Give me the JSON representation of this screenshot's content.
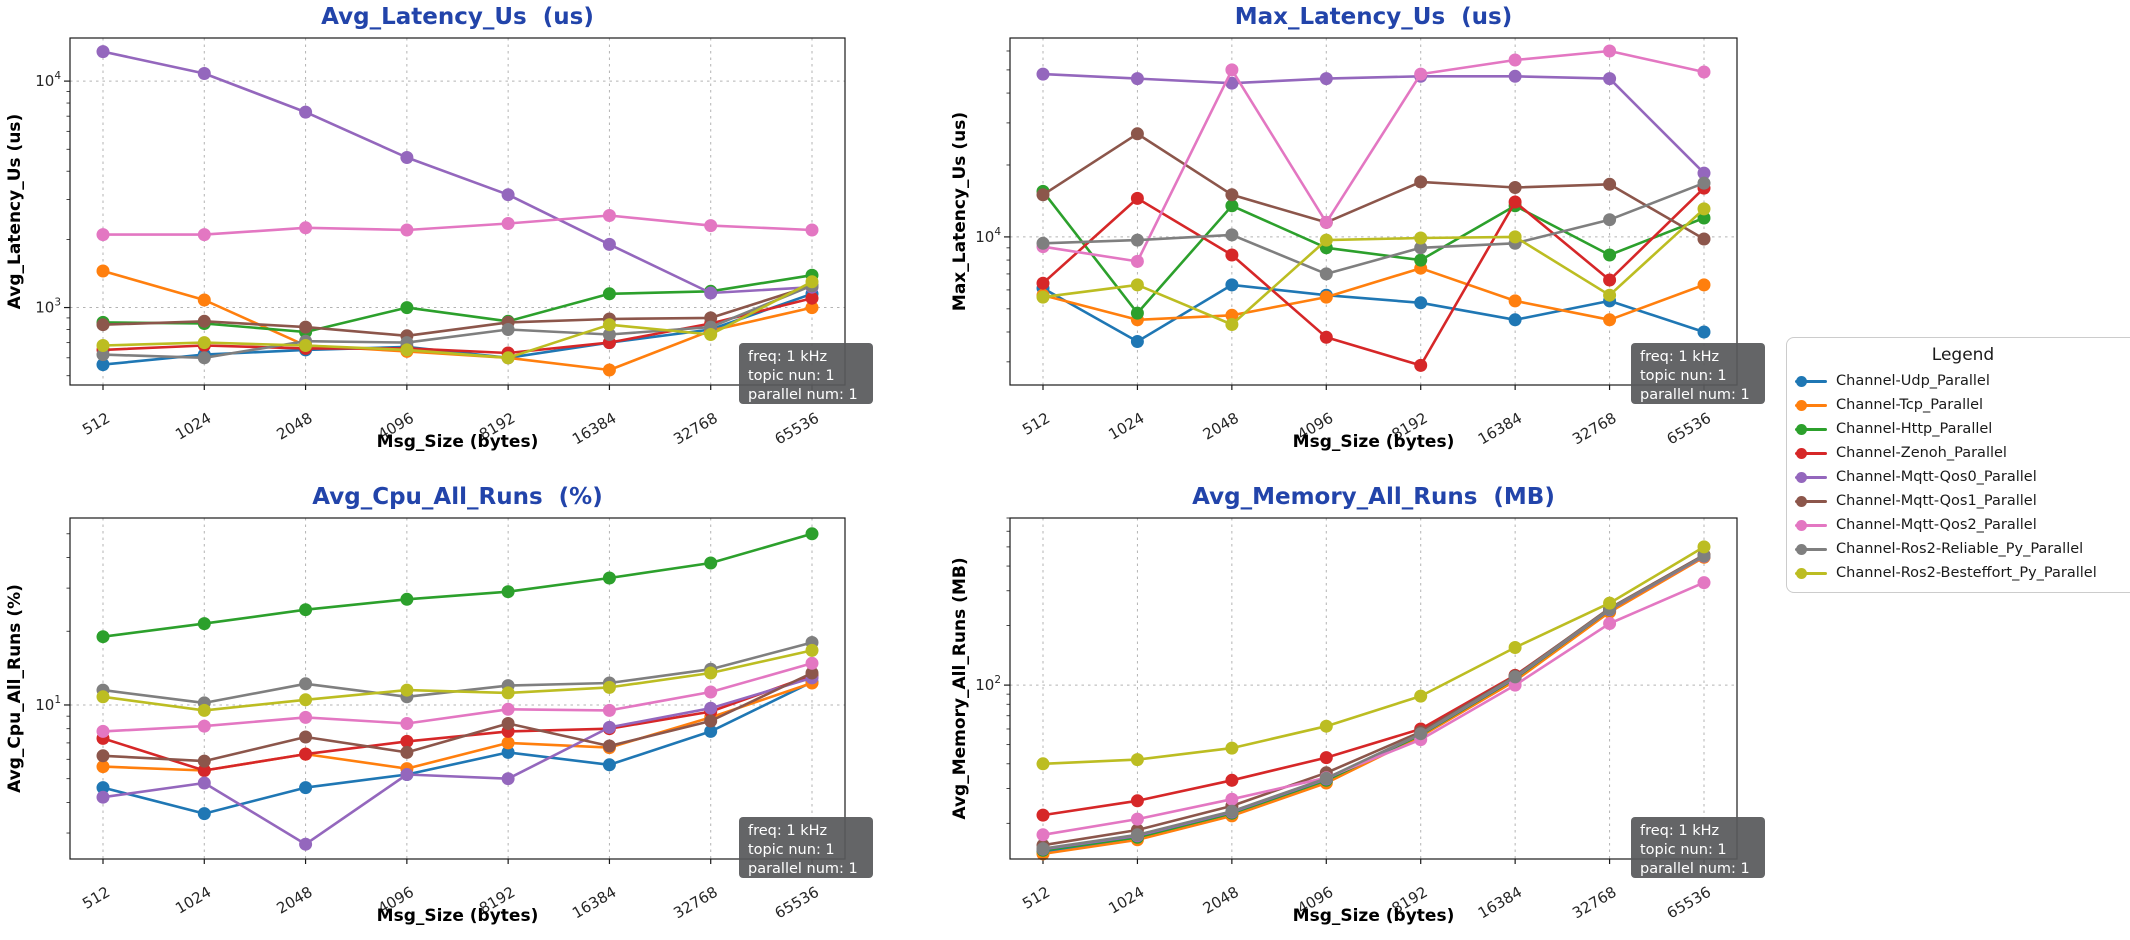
{
  "figure": {
    "background": "#ffffff",
    "title_color": "#2244aa",
    "grid_color": "#b3b3b3",
    "tick_label_color": "#262626",
    "spine_color": "#1a1a1a",
    "annotation_bg": "#58595b",
    "annotation_text_color": "#ffffff"
  },
  "legend": {
    "title": "Legend",
    "items": [
      {
        "label": "Channel-Udp_Parallel",
        "color": "#1f77b4"
      },
      {
        "label": "Channel-Tcp_Parallel",
        "color": "#ff7f0e"
      },
      {
        "label": "Channel-Http_Parallel",
        "color": "#2ca02c"
      },
      {
        "label": "Channel-Zenoh_Parallel",
        "color": "#d62728"
      },
      {
        "label": "Channel-Mqtt-Qos0_Parallel",
        "color": "#9467bd"
      },
      {
        "label": "Channel-Mqtt-Qos1_Parallel",
        "color": "#8c564b"
      },
      {
        "label": "Channel-Mqtt-Qos2_Parallel",
        "color": "#e377c2"
      },
      {
        "label": "Channel-Ros2-Reliable_Py_Parallel",
        "color": "#7f7f7f"
      },
      {
        "label": "Channel-Ros2-Besteffort_Py_Parallel",
        "color": "#bcbd22"
      }
    ]
  },
  "annotation": {
    "lines": [
      "freq: 1 kHz",
      "topic nun: 1",
      "parallel num: 1"
    ]
  },
  "x_axis": {
    "label": "Msg_Size (bytes)",
    "ticks": [
      "512",
      "1024",
      "2048",
      "4096",
      "8192",
      "16384",
      "32768",
      "65536"
    ]
  },
  "chart_data": [
    {
      "id": "avg-latency",
      "type": "line",
      "title": "Avg_Latency_Us  (us)",
      "ylabel": "Avg_Latency_Us (us)",
      "xlabel": "Msg_Size (bytes)",
      "x": [
        512,
        1024,
        2048,
        4096,
        8192,
        16384,
        32768,
        65536
      ],
      "log_y": true,
      "ylim": [
        455,
        15500
      ],
      "major_yticks": [
        1000,
        10000
      ],
      "grid": "dashed",
      "legend_position": "none",
      "series": [
        {
          "name": "Channel-Udp_Parallel",
          "color": "#1f77b4",
          "values": [
            560,
            620,
            650,
            670,
            600,
            700,
            800,
            1150
          ]
        },
        {
          "name": "Channel-Tcp_Parallel",
          "color": "#ff7f0e",
          "values": [
            1450,
            1080,
            680,
            640,
            600,
            530,
            790,
            1000
          ]
        },
        {
          "name": "Channel-Http_Parallel",
          "color": "#2ca02c",
          "values": [
            860,
            850,
            780,
            1000,
            870,
            1150,
            1180,
            1390
          ]
        },
        {
          "name": "Channel-Zenoh_Parallel",
          "color": "#d62728",
          "values": [
            650,
            680,
            660,
            660,
            630,
            700,
            850,
            1100
          ]
        },
        {
          "name": "Channel-Mqtt-Qos0_Parallel",
          "color": "#9467bd",
          "values": [
            13500,
            10800,
            7300,
            4600,
            3150,
            1900,
            1160,
            1230
          ]
        },
        {
          "name": "Channel-Mqtt-Qos1_Parallel",
          "color": "#8c564b",
          "values": [
            840,
            870,
            820,
            750,
            860,
            890,
            900,
            1250
          ]
        },
        {
          "name": "Channel-Mqtt-Qos2_Parallel",
          "color": "#e377c2",
          "values": [
            2100,
            2100,
            2250,
            2200,
            2350,
            2550,
            2300,
            2200
          ]
        },
        {
          "name": "Channel-Ros2-Reliable_Py_Parallel",
          "color": "#7f7f7f",
          "values": [
            620,
            600,
            710,
            700,
            800,
            760,
            820,
            1250
          ]
        },
        {
          "name": "Channel-Ros2-Besteffort_Py_Parallel",
          "color": "#bcbd22",
          "values": [
            680,
            700,
            680,
            650,
            600,
            840,
            760,
            1300
          ]
        }
      ]
    },
    {
      "id": "max-latency",
      "type": "line",
      "title": "Max_Latency_Us  (us)",
      "ylabel": "Max_Latency_Us (us)",
      "xlabel": "Msg_Size (bytes)",
      "x": [
        512,
        1024,
        2048,
        4096,
        8192,
        16384,
        32768,
        65536
      ],
      "log_y": true,
      "ylim": [
        2400,
        68000
      ],
      "major_yticks": [
        10000
      ],
      "grid": "dashed",
      "legend_position": "right-outside",
      "series": [
        {
          "name": "Channel-Udp_Parallel",
          "color": "#1f77b4",
          "values": [
            6100,
            3650,
            6300,
            5700,
            5300,
            4500,
            5400,
            4000
          ]
        },
        {
          "name": "Channel-Tcp_Parallel",
          "color": "#ff7f0e",
          "values": [
            5700,
            4500,
            4700,
            5600,
            7400,
            5400,
            4500,
            6300
          ]
        },
        {
          "name": "Channel-Http_Parallel",
          "color": "#2ca02c",
          "values": [
            15500,
            4800,
            13500,
            9000,
            8000,
            13500,
            8400,
            12000
          ]
        },
        {
          "name": "Channel-Zenoh_Parallel",
          "color": "#d62728",
          "values": [
            6400,
            14500,
            8400,
            3800,
            2900,
            14000,
            6600,
            16000
          ]
        },
        {
          "name": "Channel-Mqtt-Qos0_Parallel",
          "color": "#9467bd",
          "values": [
            48000,
            46000,
            44000,
            46000,
            47000,
            47000,
            46000,
            18500
          ]
        },
        {
          "name": "Channel-Mqtt-Qos1_Parallel",
          "color": "#8c564b",
          "values": [
            15000,
            27000,
            15000,
            11500,
            17000,
            16100,
            16600,
            9800
          ]
        },
        {
          "name": "Channel-Mqtt-Qos2_Parallel",
          "color": "#e377c2",
          "values": [
            9100,
            7900,
            50000,
            11500,
            48000,
            55000,
            60000,
            49000
          ]
        },
        {
          "name": "Channel-Ros2-Reliable_Py_Parallel",
          "color": "#7f7f7f",
          "values": [
            9400,
            9700,
            10200,
            7000,
            9000,
            9400,
            11800,
            16800
          ]
        },
        {
          "name": "Channel-Ros2-Besteffort_Py_Parallel",
          "color": "#bcbd22",
          "values": [
            5600,
            6300,
            4300,
            9700,
            9900,
            10000,
            5700,
            13100
          ]
        }
      ]
    },
    {
      "id": "avg-cpu",
      "type": "line",
      "title": "Avg_Cpu_All_Runs  (%)",
      "ylabel": "Avg_Cpu_All_Runs (%)",
      "xlabel": "Msg_Size (bytes)",
      "x": [
        512,
        1024,
        2048,
        4096,
        8192,
        16384,
        32768,
        65536
      ],
      "log_y": true,
      "ylim": [
        2.35,
        58
      ],
      "major_yticks": [
        10
      ],
      "grid": "dashed",
      "legend_position": "none",
      "series": [
        {
          "name": "Channel-Udp_Parallel",
          "color": "#1f77b4",
          "values": [
            4.6,
            3.6,
            4.6,
            5.2,
            6.4,
            5.7,
            7.8,
            12.4
          ]
        },
        {
          "name": "Channel-Tcp_Parallel",
          "color": "#ff7f0e",
          "values": [
            5.6,
            5.4,
            6.3,
            5.5,
            7.0,
            6.7,
            8.9,
            12.3
          ]
        },
        {
          "name": "Channel-Http_Parallel",
          "color": "#2ca02c",
          "values": [
            19,
            21.5,
            24.5,
            27,
            29,
            33,
            38,
            50
          ]
        },
        {
          "name": "Channel-Zenoh_Parallel",
          "color": "#d62728",
          "values": [
            7.3,
            5.4,
            6.3,
            7.1,
            7.8,
            8.0,
            9.4,
            13.2
          ]
        },
        {
          "name": "Channel-Mqtt-Qos0_Parallel",
          "color": "#9467bd",
          "values": [
            4.2,
            4.8,
            2.7,
            5.2,
            5.0,
            8.1,
            9.7,
            12.9
          ]
        },
        {
          "name": "Channel-Mqtt-Qos1_Parallel",
          "color": "#8c564b",
          "values": [
            6.2,
            5.9,
            7.4,
            6.4,
            8.4,
            6.8,
            8.6,
            13.5
          ]
        },
        {
          "name": "Channel-Mqtt-Qos2_Parallel",
          "color": "#e377c2",
          "values": [
            7.8,
            8.2,
            8.9,
            8.4,
            9.6,
            9.5,
            11.3,
            14.8
          ]
        },
        {
          "name": "Channel-Ros2-Reliable_Py_Parallel",
          "color": "#7f7f7f",
          "values": [
            11.5,
            10.2,
            12.2,
            10.8,
            12.0,
            12.3,
            14.0,
            18.0
          ]
        },
        {
          "name": "Channel-Ros2-Besteffort_Py_Parallel",
          "color": "#bcbd22",
          "values": [
            10.8,
            9.5,
            10.5,
            11.5,
            11.2,
            11.8,
            13.5,
            16.7
          ]
        }
      ]
    },
    {
      "id": "avg-memory",
      "type": "line",
      "title": "Avg_Memory_All_Runs  (MB)",
      "ylabel": "Avg_Memory_All_Runs (MB)",
      "xlabel": "Msg_Size (bytes)",
      "x": [
        512,
        1024,
        2048,
        4096,
        8192,
        16384,
        32768,
        65536
      ],
      "log_y": true,
      "ylim": [
        13.2,
        700
      ],
      "major_yticks": [
        100
      ],
      "grid": "dashed",
      "legend_position": "none",
      "series": [
        {
          "name": "Channel-Udp_Parallel",
          "color": "#1f77b4",
          "values": [
            14.3,
            16.8,
            22.2,
            32.5,
            55.5,
            106,
            237,
            447
          ]
        },
        {
          "name": "Channel-Tcp_Parallel",
          "color": "#ff7f0e",
          "values": [
            14.0,
            16.5,
            21.8,
            32.0,
            55.0,
            105,
            234,
            443
          ]
        },
        {
          "name": "Channel-Http_Parallel",
          "color": "#2ca02c",
          "values": [
            14.6,
            17.0,
            22.5,
            33.0,
            56.0,
            108,
            240,
            450
          ]
        },
        {
          "name": "Channel-Zenoh_Parallel",
          "color": "#d62728",
          "values": [
            22,
            26,
            33,
            43,
            60,
            112,
            242,
            452
          ]
        },
        {
          "name": "Channel-Mqtt-Qos0_Parallel",
          "color": "#9467bd",
          "values": [
            14.8,
            17.3,
            22.8,
            33.5,
            56.5,
            109,
            241,
            448
          ]
        },
        {
          "name": "Channel-Mqtt-Qos1_Parallel",
          "color": "#8c564b",
          "values": [
            15.5,
            18.5,
            24.5,
            36,
            58,
            111,
            245,
            455
          ]
        },
        {
          "name": "Channel-Mqtt-Qos2_Parallel",
          "color": "#e377c2",
          "values": [
            17.5,
            21,
            26.5,
            34,
            53,
            100,
            205,
            330
          ]
        },
        {
          "name": "Channel-Ros2-Reliable_Py_Parallel",
          "color": "#7f7f7f",
          "values": [
            14.9,
            17.5,
            23,
            33.8,
            56.8,
            110,
            243,
            451
          ]
        },
        {
          "name": "Channel-Ros2-Besteffort_Py_Parallel",
          "color": "#bcbd22",
          "values": [
            40,
            42,
            48,
            62,
            88,
            155,
            260,
            500
          ]
        }
      ]
    }
  ]
}
